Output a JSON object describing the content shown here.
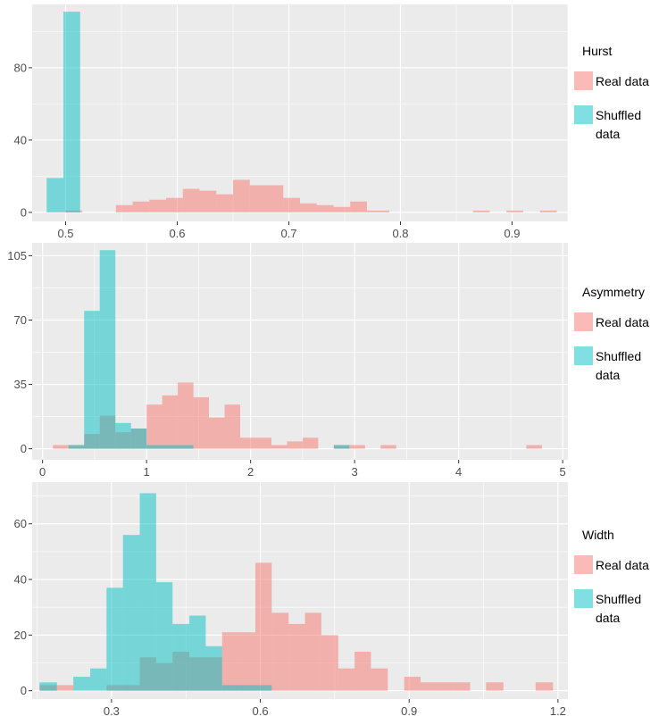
{
  "colors": {
    "real": "#F8766D",
    "shuffled": "#00BFC4",
    "panel": "#EBEBEB",
    "grid": "#FFFFFF"
  },
  "chart_data": [
    {
      "type": "bar",
      "title": "Hurst",
      "legend_title": "Hurst",
      "legend_position": "right",
      "xlim": [
        0.47,
        0.95
      ],
      "ylim": [
        -5,
        115
      ],
      "x_ticks": [
        0.5,
        0.6,
        0.7,
        0.8,
        0.9
      ],
      "x_tick_labels": [
        "0.5",
        "0.6",
        "0.7",
        "0.8",
        "0.9"
      ],
      "y_ticks": [
        0,
        40,
        80
      ],
      "y_tick_labels": [
        "0",
        "40",
        "80"
      ],
      "series": [
        {
          "name": "Real data",
          "color": "#F8766D",
          "bins": [
            [
              0.5,
              0.515,
              1
            ],
            [
              0.545,
              0.56,
              4
            ],
            [
              0.56,
              0.575,
              6
            ],
            [
              0.575,
              0.59,
              7
            ],
            [
              0.59,
              0.605,
              8
            ],
            [
              0.605,
              0.62,
              13
            ],
            [
              0.62,
              0.635,
              12
            ],
            [
              0.635,
              0.65,
              10
            ],
            [
              0.65,
              0.665,
              18
            ],
            [
              0.665,
              0.68,
              15
            ],
            [
              0.68,
              0.695,
              15
            ],
            [
              0.695,
              0.71,
              8
            ],
            [
              0.71,
              0.725,
              5
            ],
            [
              0.725,
              0.74,
              4
            ],
            [
              0.74,
              0.755,
              3
            ],
            [
              0.755,
              0.77,
              6
            ],
            [
              0.77,
              0.79,
              1
            ],
            [
              0.865,
              0.88,
              1
            ],
            [
              0.895,
              0.91,
              1
            ],
            [
              0.925,
              0.94,
              1
            ]
          ]
        },
        {
          "name": "Shuffled data",
          "color": "#00BFC4",
          "bins": [
            [
              0.483,
              0.498,
              19
            ],
            [
              0.498,
              0.513,
              111
            ]
          ]
        }
      ],
      "legend": [
        {
          "label_lines": [
            "Real data"
          ],
          "color": "#F8766D"
        },
        {
          "label_lines": [
            "Shuffled",
            "data"
          ],
          "color": "#00BFC4"
        }
      ]
    },
    {
      "type": "bar",
      "title": "Asymmetry",
      "legend_title": "Asymmetry",
      "legend_position": "right",
      "xlim": [
        -0.1,
        5.05
      ],
      "ylim": [
        -6,
        112
      ],
      "x_ticks": [
        0,
        1,
        2,
        3,
        4,
        5
      ],
      "x_tick_labels": [
        "0",
        "1",
        "2",
        "3",
        "4",
        "5"
      ],
      "y_ticks": [
        0,
        35,
        70,
        105
      ],
      "y_tick_labels": [
        "0",
        "35",
        "70",
        "105"
      ],
      "series": [
        {
          "name": "Real data",
          "color": "#F8766D",
          "bins": [
            [
              0.1,
              0.25,
              2
            ],
            [
              0.25,
              0.4,
              2
            ],
            [
              0.4,
              0.55,
              8
            ],
            [
              0.55,
              0.7,
              18
            ],
            [
              0.7,
              0.85,
              9
            ],
            [
              0.85,
              1.0,
              11
            ],
            [
              1.0,
              1.15,
              24
            ],
            [
              1.15,
              1.3,
              29
            ],
            [
              1.3,
              1.45,
              36
            ],
            [
              1.45,
              1.6,
              28
            ],
            [
              1.6,
              1.75,
              17
            ],
            [
              1.75,
              1.9,
              24
            ],
            [
              1.9,
              2.05,
              6
            ],
            [
              2.05,
              2.2,
              6
            ],
            [
              2.2,
              2.35,
              2
            ],
            [
              2.35,
              2.5,
              4
            ],
            [
              2.5,
              2.65,
              6
            ],
            [
              2.8,
              2.95,
              2
            ],
            [
              2.95,
              3.1,
              2
            ],
            [
              3.25,
              3.4,
              2
            ],
            [
              4.65,
              4.8,
              2
            ]
          ]
        },
        {
          "name": "Shuffled data",
          "color": "#00BFC4",
          "bins": [
            [
              0.25,
              0.4,
              2
            ],
            [
              0.4,
              0.55,
              75
            ],
            [
              0.55,
              0.7,
              108
            ],
            [
              0.7,
              0.85,
              14
            ],
            [
              0.85,
              1.0,
              11
            ],
            [
              1.0,
              1.15,
              2
            ],
            [
              1.15,
              1.3,
              2
            ],
            [
              1.3,
              1.45,
              2
            ],
            [
              2.8,
              2.95,
              2
            ]
          ]
        }
      ],
      "legend": [
        {
          "label_lines": [
            "Real data"
          ],
          "color": "#F8766D"
        },
        {
          "label_lines": [
            "Shuffled",
            "data"
          ],
          "color": "#00BFC4"
        }
      ]
    },
    {
      "type": "bar",
      "title": "Width",
      "legend_title": "Width",
      "legend_position": "right",
      "xlim": [
        0.14,
        1.22
      ],
      "ylim": [
        -3,
        75
      ],
      "x_ticks": [
        0.3,
        0.6,
        0.9,
        1.2
      ],
      "x_tick_labels": [
        "0.3",
        "0.6",
        "0.9",
        "1.2"
      ],
      "y_ticks": [
        0,
        20,
        40,
        60
      ],
      "y_tick_labels": [
        "0",
        "20",
        "40",
        "60"
      ],
      "series": [
        {
          "name": "Real data",
          "color": "#F8766D",
          "bins": [
            [
              0.155,
              0.19,
              2
            ],
            [
              0.19,
              0.223,
              2
            ],
            [
              0.29,
              0.323,
              2
            ],
            [
              0.323,
              0.357,
              2
            ],
            [
              0.357,
              0.39,
              12
            ],
            [
              0.39,
              0.423,
              10
            ],
            [
              0.423,
              0.457,
              14
            ],
            [
              0.457,
              0.49,
              12
            ],
            [
              0.49,
              0.523,
              12
            ],
            [
              0.523,
              0.557,
              21
            ],
            [
              0.557,
              0.59,
              21
            ],
            [
              0.59,
              0.623,
              46
            ],
            [
              0.623,
              0.657,
              28
            ],
            [
              0.657,
              0.69,
              24
            ],
            [
              0.69,
              0.723,
              28
            ],
            [
              0.723,
              0.757,
              20
            ],
            [
              0.757,
              0.79,
              8
            ],
            [
              0.79,
              0.823,
              14
            ],
            [
              0.823,
              0.857,
              8
            ],
            [
              0.89,
              0.923,
              5
            ],
            [
              0.923,
              0.957,
              3
            ],
            [
              0.957,
              0.99,
              3
            ],
            [
              0.99,
              1.023,
              3
            ],
            [
              1.055,
              1.09,
              3
            ],
            [
              1.155,
              1.19,
              3
            ]
          ]
        },
        {
          "name": "Shuffled data",
          "color": "#00BFC4",
          "bins": [
            [
              0.155,
              0.19,
              3
            ],
            [
              0.223,
              0.257,
              5
            ],
            [
              0.257,
              0.29,
              8
            ],
            [
              0.29,
              0.323,
              37
            ],
            [
              0.323,
              0.357,
              56
            ],
            [
              0.357,
              0.39,
              71
            ],
            [
              0.39,
              0.423,
              39
            ],
            [
              0.423,
              0.457,
              24
            ],
            [
              0.457,
              0.49,
              27
            ],
            [
              0.49,
              0.523,
              16
            ],
            [
              0.523,
              0.557,
              2
            ],
            [
              0.557,
              0.59,
              2
            ],
            [
              0.59,
              0.623,
              2
            ]
          ]
        }
      ],
      "legend": [
        {
          "label_lines": [
            "Real data"
          ],
          "color": "#F8766D"
        },
        {
          "label_lines": [
            "Shuffled",
            "data"
          ],
          "color": "#00BFC4"
        }
      ]
    }
  ]
}
